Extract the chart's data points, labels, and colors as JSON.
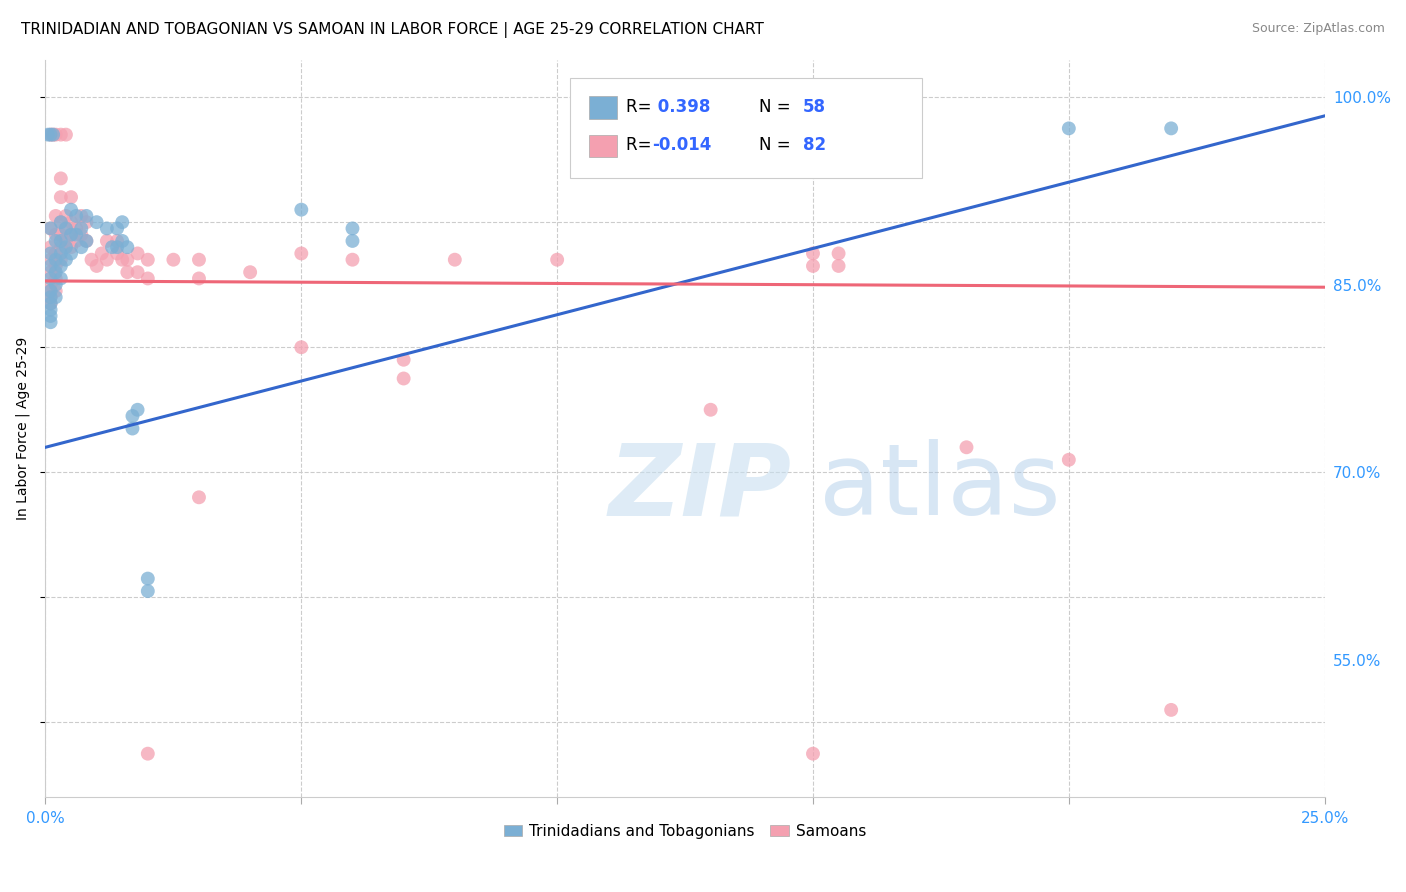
{
  "title": "TRINIDADIAN AND TOBAGONIAN VS SAMOAN IN LABOR FORCE | AGE 25-29 CORRELATION CHART",
  "source": "Source: ZipAtlas.com",
  "ylabel": "In Labor Force | Age 25-29",
  "xlim": [
    0.0,
    0.25
  ],
  "ylim": [
    0.44,
    1.03
  ],
  "yticks": [
    0.55,
    0.7,
    0.85,
    1.0
  ],
  "ytick_labels": [
    "55.0%",
    "70.0%",
    "85.0%",
    "100.0%"
  ],
  "xticks": [
    0.0,
    0.05,
    0.1,
    0.15,
    0.2,
    0.25
  ],
  "xtick_labels": [
    "0.0%",
    "",
    "",
    "",
    "",
    "25.0%"
  ],
  "r1": 0.398,
  "n1": 58,
  "r2": -0.014,
  "n2": 82,
  "blue_color": "#7BAFD4",
  "pink_color": "#F4A0B0",
  "line_blue": "#3366CC",
  "line_pink": "#EE6677",
  "blue_line_x": [
    0.0,
    0.25
  ],
  "blue_line_y": [
    0.72,
    0.985
  ],
  "pink_line_x": [
    0.0,
    0.25
  ],
  "pink_line_y": [
    0.853,
    0.848
  ],
  "blue_scatter": [
    [
      0.0005,
      0.97
    ],
    [
      0.001,
      0.97
    ],
    [
      0.0015,
      0.97
    ],
    [
      0.001,
      0.895
    ],
    [
      0.001,
      0.875
    ],
    [
      0.001,
      0.865
    ],
    [
      0.001,
      0.855
    ],
    [
      0.001,
      0.845
    ],
    [
      0.001,
      0.84
    ],
    [
      0.001,
      0.835
    ],
    [
      0.001,
      0.83
    ],
    [
      0.001,
      0.825
    ],
    [
      0.001,
      0.82
    ],
    [
      0.002,
      0.885
    ],
    [
      0.002,
      0.87
    ],
    [
      0.002,
      0.86
    ],
    [
      0.002,
      0.85
    ],
    [
      0.002,
      0.84
    ],
    [
      0.003,
      0.9
    ],
    [
      0.003,
      0.885
    ],
    [
      0.003,
      0.875
    ],
    [
      0.003,
      0.865
    ],
    [
      0.003,
      0.855
    ],
    [
      0.004,
      0.895
    ],
    [
      0.004,
      0.88
    ],
    [
      0.004,
      0.87
    ],
    [
      0.005,
      0.91
    ],
    [
      0.005,
      0.89
    ],
    [
      0.005,
      0.875
    ],
    [
      0.006,
      0.905
    ],
    [
      0.006,
      0.89
    ],
    [
      0.007,
      0.895
    ],
    [
      0.007,
      0.88
    ],
    [
      0.008,
      0.905
    ],
    [
      0.008,
      0.885
    ],
    [
      0.01,
      0.9
    ],
    [
      0.012,
      0.895
    ],
    [
      0.013,
      0.88
    ],
    [
      0.014,
      0.895
    ],
    [
      0.014,
      0.88
    ],
    [
      0.015,
      0.9
    ],
    [
      0.015,
      0.885
    ],
    [
      0.016,
      0.88
    ],
    [
      0.017,
      0.745
    ],
    [
      0.017,
      0.735
    ],
    [
      0.018,
      0.75
    ],
    [
      0.02,
      0.615
    ],
    [
      0.02,
      0.605
    ],
    [
      0.05,
      0.91
    ],
    [
      0.06,
      0.895
    ],
    [
      0.06,
      0.885
    ],
    [
      0.2,
      0.975
    ],
    [
      0.22,
      0.975
    ]
  ],
  "pink_scatter": [
    [
      0.001,
      0.97
    ],
    [
      0.0015,
      0.97
    ],
    [
      0.002,
      0.97
    ],
    [
      0.003,
      0.97
    ],
    [
      0.004,
      0.97
    ],
    [
      0.001,
      0.895
    ],
    [
      0.001,
      0.88
    ],
    [
      0.001,
      0.87
    ],
    [
      0.001,
      0.86
    ],
    [
      0.001,
      0.85
    ],
    [
      0.001,
      0.845
    ],
    [
      0.001,
      0.84
    ],
    [
      0.001,
      0.835
    ],
    [
      0.002,
      0.905
    ],
    [
      0.002,
      0.89
    ],
    [
      0.002,
      0.875
    ],
    [
      0.002,
      0.865
    ],
    [
      0.002,
      0.855
    ],
    [
      0.002,
      0.845
    ],
    [
      0.003,
      0.935
    ],
    [
      0.003,
      0.92
    ],
    [
      0.003,
      0.9
    ],
    [
      0.003,
      0.89
    ],
    [
      0.003,
      0.88
    ],
    [
      0.003,
      0.87
    ],
    [
      0.004,
      0.905
    ],
    [
      0.004,
      0.895
    ],
    [
      0.004,
      0.885
    ],
    [
      0.005,
      0.92
    ],
    [
      0.005,
      0.9
    ],
    [
      0.005,
      0.89
    ],
    [
      0.005,
      0.88
    ],
    [
      0.006,
      0.895
    ],
    [
      0.006,
      0.885
    ],
    [
      0.007,
      0.905
    ],
    [
      0.007,
      0.89
    ],
    [
      0.008,
      0.9
    ],
    [
      0.008,
      0.885
    ],
    [
      0.009,
      0.87
    ],
    [
      0.01,
      0.865
    ],
    [
      0.011,
      0.875
    ],
    [
      0.012,
      0.885
    ],
    [
      0.012,
      0.87
    ],
    [
      0.014,
      0.885
    ],
    [
      0.014,
      0.875
    ],
    [
      0.015,
      0.87
    ],
    [
      0.016,
      0.87
    ],
    [
      0.016,
      0.86
    ],
    [
      0.018,
      0.875
    ],
    [
      0.018,
      0.86
    ],
    [
      0.02,
      0.87
    ],
    [
      0.02,
      0.855
    ],
    [
      0.025,
      0.87
    ],
    [
      0.03,
      0.87
    ],
    [
      0.03,
      0.855
    ],
    [
      0.04,
      0.86
    ],
    [
      0.05,
      0.875
    ],
    [
      0.05,
      0.8
    ],
    [
      0.06,
      0.87
    ],
    [
      0.07,
      0.79
    ],
    [
      0.07,
      0.775
    ],
    [
      0.08,
      0.87
    ],
    [
      0.1,
      0.87
    ],
    [
      0.13,
      0.75
    ],
    [
      0.15,
      0.875
    ],
    [
      0.15,
      0.865
    ],
    [
      0.155,
      0.875
    ],
    [
      0.155,
      0.865
    ],
    [
      0.18,
      0.72
    ],
    [
      0.2,
      0.71
    ],
    [
      0.22,
      0.51
    ],
    [
      0.03,
      0.68
    ],
    [
      0.02,
      0.475
    ],
    [
      0.15,
      0.475
    ]
  ]
}
